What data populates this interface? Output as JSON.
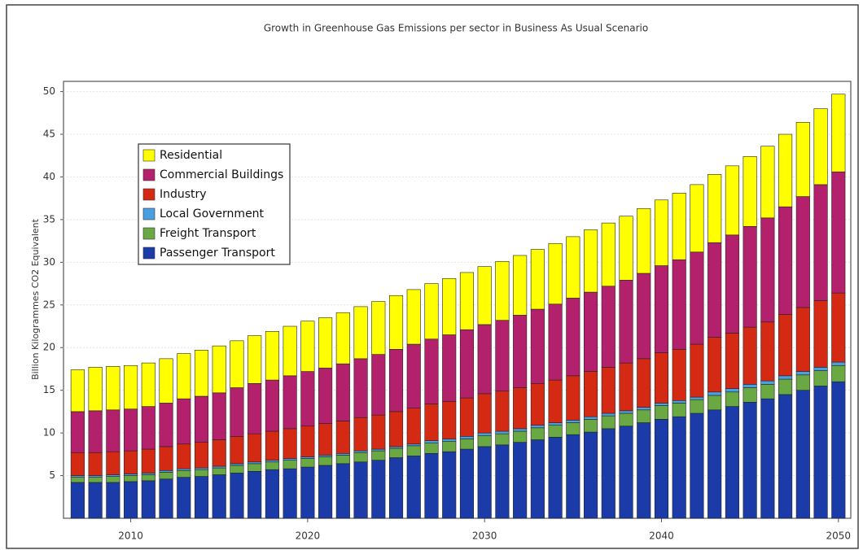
{
  "chart_data": {
    "type": "stacked-bar",
    "title": "Growth in Greenhouse Gas Emissions per sector in Business As Usual Scenario",
    "y_label": "Billion Kilogrammes CO2 Equivalent",
    "x": [
      2007,
      2008,
      2009,
      2010,
      2011,
      2012,
      2013,
      2014,
      2015,
      2016,
      2017,
      2018,
      2019,
      2020,
      2021,
      2022,
      2023,
      2024,
      2025,
      2026,
      2027,
      2028,
      2029,
      2030,
      2031,
      2032,
      2033,
      2034,
      2035,
      2036,
      2037,
      2038,
      2039,
      2040,
      2041,
      2042,
      2043,
      2044,
      2045,
      2046,
      2047,
      2048,
      2049,
      2050
    ],
    "xlim": [
      2006.2,
      2050.7
    ],
    "xticks": [
      2010,
      2020,
      2030,
      2040,
      2050
    ],
    "ylim": [
      0,
      51.2
    ],
    "yticks": [
      5,
      10,
      15,
      20,
      25,
      30,
      35,
      40,
      45,
      50
    ],
    "grid": true,
    "legend": "upper left",
    "series": [
      {
        "name": "Passenger Transport",
        "color": "#1b3ca8",
        "values": [
          4.2,
          4.2,
          4.2,
          4.3,
          4.4,
          4.6,
          4.8,
          4.9,
          5.1,
          5.3,
          5.5,
          5.7,
          5.8,
          6.0,
          6.2,
          6.4,
          6.6,
          6.8,
          7.1,
          7.3,
          7.6,
          7.8,
          8.1,
          8.4,
          8.6,
          8.9,
          9.2,
          9.5,
          9.8,
          10.1,
          10.5,
          10.8,
          11.2,
          11.6,
          11.9,
          12.3,
          12.7,
          13.1,
          13.6,
          14.0,
          14.5,
          15.0,
          15.5,
          16.0
        ]
      },
      {
        "name": "Freight Transport",
        "color": "#6aa844",
        "values": [
          0.6,
          0.6,
          0.7,
          0.7,
          0.7,
          0.8,
          0.8,
          0.8,
          0.8,
          0.9,
          0.9,
          0.9,
          1.0,
          1.0,
          1.0,
          1.0,
          1.1,
          1.1,
          1.1,
          1.2,
          1.2,
          1.2,
          1.2,
          1.3,
          1.3,
          1.3,
          1.4,
          1.4,
          1.4,
          1.5,
          1.5,
          1.5,
          1.5,
          1.6,
          1.6,
          1.6,
          1.7,
          1.7,
          1.7,
          1.7,
          1.8,
          1.8,
          1.8,
          1.9
        ]
      },
      {
        "name": "Local Government",
        "color": "#4a9fe0",
        "values": [
          0.2,
          0.2,
          0.2,
          0.2,
          0.2,
          0.2,
          0.2,
          0.2,
          0.2,
          0.2,
          0.2,
          0.2,
          0.2,
          0.2,
          0.2,
          0.2,
          0.2,
          0.2,
          0.2,
          0.2,
          0.3,
          0.3,
          0.3,
          0.3,
          0.3,
          0.3,
          0.3,
          0.3,
          0.3,
          0.3,
          0.3,
          0.3,
          0.3,
          0.3,
          0.3,
          0.3,
          0.4,
          0.4,
          0.4,
          0.4,
          0.4,
          0.4,
          0.4,
          0.4
        ]
      },
      {
        "name": "Industry",
        "color": "#d42a14",
        "values": [
          2.7,
          2.7,
          2.7,
          2.7,
          2.8,
          2.8,
          2.9,
          3.0,
          3.1,
          3.2,
          3.3,
          3.4,
          3.5,
          3.6,
          3.7,
          3.8,
          3.9,
          4.0,
          4.1,
          4.2,
          4.3,
          4.4,
          4.5,
          4.6,
          4.7,
          4.8,
          4.9,
          5.0,
          5.2,
          5.3,
          5.4,
          5.6,
          5.7,
          5.9,
          6.0,
          6.2,
          6.4,
          6.5,
          6.7,
          6.9,
          7.2,
          7.5,
          7.8,
          8.1
        ]
      },
      {
        "name": "Commercial Buildings",
        "color": "#b3206c",
        "values": [
          4.8,
          4.9,
          4.9,
          4.9,
          5.0,
          5.1,
          5.3,
          5.4,
          5.5,
          5.7,
          5.9,
          6.0,
          6.2,
          6.4,
          6.5,
          6.7,
          6.9,
          7.1,
          7.3,
          7.5,
          7.6,
          7.8,
          8.0,
          8.1,
          8.3,
          8.5,
          8.7,
          8.9,
          9.1,
          9.3,
          9.5,
          9.7,
          10.0,
          10.2,
          10.5,
          10.8,
          11.1,
          11.5,
          11.8,
          12.2,
          12.6,
          13.0,
          13.6,
          14.2
        ]
      },
      {
        "name": "Residential",
        "color": "#ffff00",
        "values": [
          4.9,
          5.1,
          5.1,
          5.1,
          5.1,
          5.2,
          5.3,
          5.4,
          5.5,
          5.5,
          5.6,
          5.7,
          5.8,
          5.9,
          5.9,
          6.0,
          6.1,
          6.2,
          6.3,
          6.4,
          6.5,
          6.6,
          6.7,
          6.8,
          6.9,
          7.0,
          7.0,
          7.1,
          7.2,
          7.3,
          7.4,
          7.5,
          7.6,
          7.7,
          7.8,
          7.9,
          8.0,
          8.1,
          8.2,
          8.4,
          8.5,
          8.7,
          8.9,
          9.1
        ]
      }
    ]
  }
}
